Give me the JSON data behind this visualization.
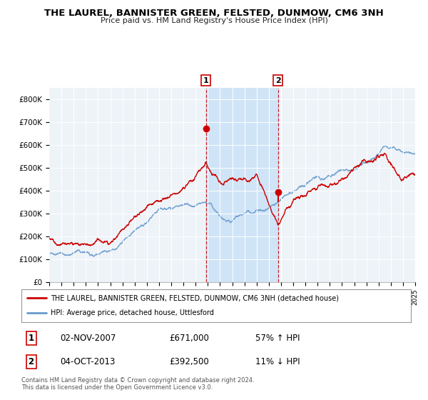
{
  "title": "THE LAUREL, BANNISTER GREEN, FELSTED, DUNMOW, CM6 3NH",
  "subtitle": "Price paid vs. HM Land Registry's House Price Index (HPI)",
  "legend_line1": "THE LAUREL, BANNISTER GREEN, FELSTED, DUNMOW, CM6 3NH (detached house)",
  "legend_line2": "HPI: Average price, detached house, Uttlesford",
  "transaction1_date": "02-NOV-2007",
  "transaction1_price": 671000,
  "transaction1_hpi": "57% ↑ HPI",
  "transaction2_date": "04-OCT-2013",
  "transaction2_price": 392500,
  "transaction2_hpi": "11% ↓ HPI",
  "footer": "Contains HM Land Registry data © Crown copyright and database right 2024.\nThis data is licensed under the Open Government Licence v3.0.",
  "house_color": "#cc0000",
  "hpi_color": "#6699cc",
  "background_color": "#ffffff",
  "plot_bg_color": "#eef3f8",
  "shade_color": "#d0e4f7",
  "ylim": [
    0,
    850000
  ],
  "yticks": [
    0,
    100000,
    200000,
    300000,
    400000,
    500000,
    600000,
    700000,
    800000
  ],
  "ytick_labels": [
    "£0",
    "£100K",
    "£200K",
    "£300K",
    "£400K",
    "£500K",
    "£600K",
    "£700K",
    "£800K"
  ],
  "year_start": 1995,
  "year_end": 2025,
  "t1_year": 2007.84,
  "t2_year": 2013.75
}
